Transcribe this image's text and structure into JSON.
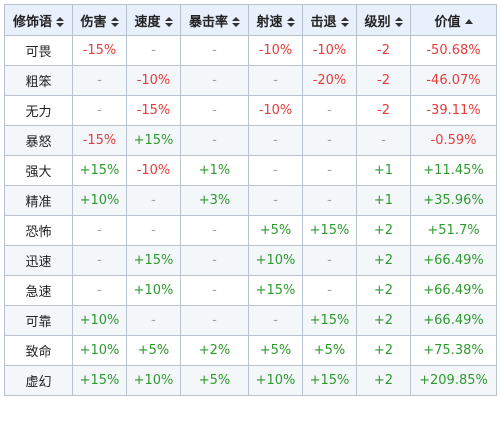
{
  "table": {
    "headers": [
      "修饰语",
      "伤害",
      "速度",
      "暴击率",
      "射速",
      "击退",
      "级别",
      "价值"
    ],
    "rows": [
      [
        "可畏",
        "-15%",
        "-",
        "-",
        "-10%",
        "-10%",
        "-2",
        "-50.68%"
      ],
      [
        "粗笨",
        "-",
        "-10%",
        "-",
        "-",
        "-20%",
        "-2",
        "-46.07%"
      ],
      [
        "无力",
        "-",
        "-15%",
        "-",
        "-10%",
        "-",
        "-2",
        "-39.11%"
      ],
      [
        "暴怒",
        "-15%",
        "+15%",
        "-",
        "-",
        "-",
        "-",
        "-0.59%"
      ],
      [
        "强大",
        "+15%",
        "-10%",
        "+1%",
        "-",
        "-",
        "+1",
        "+11.45%"
      ],
      [
        "精准",
        "+10%",
        "-",
        "+3%",
        "-",
        "-",
        "+1",
        "+35.96%"
      ],
      [
        "恐怖",
        "-",
        "-",
        "-",
        "+5%",
        "+15%",
        "+2",
        "+51.7%"
      ],
      [
        "迅速",
        "-",
        "+15%",
        "-",
        "+10%",
        "-",
        "+2",
        "+66.49%"
      ],
      [
        "急速",
        "-",
        "+10%",
        "-",
        "+15%",
        "-",
        "+2",
        "+66.49%"
      ],
      [
        "可靠",
        "+10%",
        "-",
        "-",
        "-",
        "+15%",
        "+2",
        "+66.49%"
      ],
      [
        "致命",
        "+10%",
        "+5%",
        "+2%",
        "+5%",
        "+5%",
        "+2",
        "+75.38%"
      ],
      [
        "虚幻",
        "+15%",
        "+10%",
        "+5%",
        "+10%",
        "+15%",
        "+2",
        "+209.85%"
      ]
    ],
    "colors": {
      "positive": "#2e9a2e",
      "negative": "#e53b3b",
      "none": "#9aa0a6",
      "header_bg": "#e7f0fb",
      "border": "#b9c3cf"
    },
    "sort_icon": "sort-updown-icon",
    "active_sort_icon": "sort-up-icon"
  }
}
